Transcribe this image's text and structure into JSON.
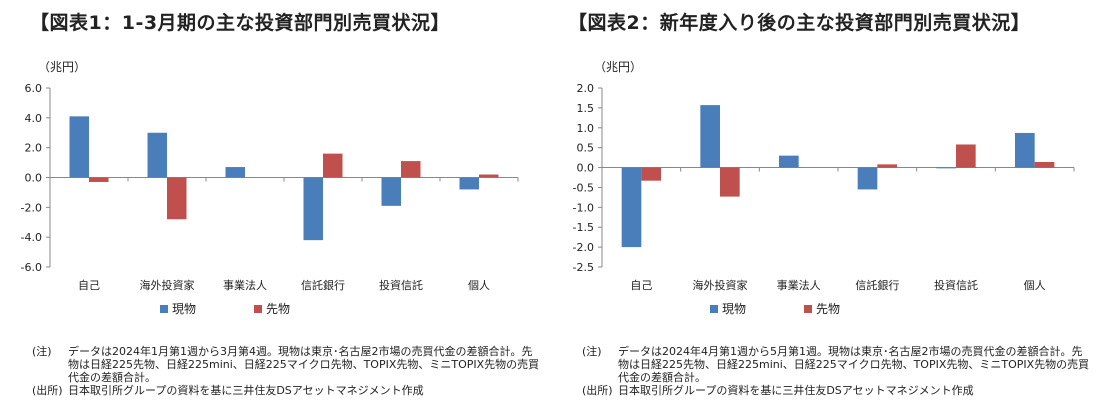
{
  "colors": {
    "spot": "#4a7ebb",
    "futures": "#c0504d",
    "axis": "#888888"
  },
  "chart_data": [
    {
      "type": "bar",
      "title": "【図表1：1-3月期の主な投資部門別売買状況】",
      "ylabel": "（兆円）",
      "ylim": [
        -6,
        6
      ],
      "yticks": [
        6,
        4,
        2,
        0,
        -2,
        -4,
        -6
      ],
      "ytick_labels": [
        "6.0",
        "4.0",
        "2.0",
        "0.0",
        "-2.0",
        "-4.0",
        "-6.0"
      ],
      "categories": [
        "自己",
        "海外投資家",
        "事業法人",
        "信託銀行",
        "投資信託",
        "個人"
      ],
      "series": [
        {
          "name": "現物",
          "values": [
            4.1,
            3.0,
            0.7,
            -4.2,
            -1.9,
            -0.8
          ]
        },
        {
          "name": "先物",
          "values": [
            -0.3,
            -2.8,
            0.0,
            1.6,
            1.1,
            0.2
          ]
        }
      ],
      "legend": "bottom",
      "notes": {
        "label": "(注)",
        "text": "データは2024年1月第1週から3月第4週。現物は東京･名古屋2市場の売買代金の差額合計。先物は日経225先物、日経225mini、日経225マイクロ先物、TOPIX先物、ミニTOPIX先物の売買代金の差額合計。"
      },
      "source": {
        "label": "(出所)",
        "text": "日本取引所グループの資料を基に三井住友DSアセットマネジメント作成"
      }
    },
    {
      "type": "bar",
      "title": "【図表2：新年度入り後の主な投資部門別売買状況】",
      "ylabel": "（兆円）",
      "ylim": [
        -2.5,
        2.0
      ],
      "yticks": [
        2.0,
        1.5,
        1.0,
        0.5,
        0.0,
        -0.5,
        -1.0,
        -1.5,
        -2.0,
        -2.5
      ],
      "ytick_labels": [
        "2.0",
        "1.5",
        "1.0",
        "0.5",
        "0.0",
        "-0.5",
        "-1.0",
        "-1.5",
        "-2.0",
        "-2.5"
      ],
      "categories": [
        "自己",
        "海外投資家",
        "事業法人",
        "信託銀行",
        "投資信託",
        "個人"
      ],
      "series": [
        {
          "name": "現物",
          "values": [
            -2.0,
            1.57,
            0.3,
            -0.55,
            -0.02,
            0.87
          ]
        },
        {
          "name": "先物",
          "values": [
            -0.33,
            -0.73,
            0.0,
            0.08,
            0.58,
            0.14
          ]
        }
      ],
      "legend": "bottom",
      "notes": {
        "label": "(注)",
        "text": "データは2024年4月第1週から5月第1週。現物は東京･名古屋2市場の売買代金の差額合計。先物は日経225先物、日経225mini、日経225マイクロ先物、TOPIX先物、ミニTOPIX先物の売買代金の差額合計。"
      },
      "source": {
        "label": "(出所)",
        "text": "日本取引所グループの資料を基に三井住友DSアセットマネジメント作成"
      }
    }
  ]
}
